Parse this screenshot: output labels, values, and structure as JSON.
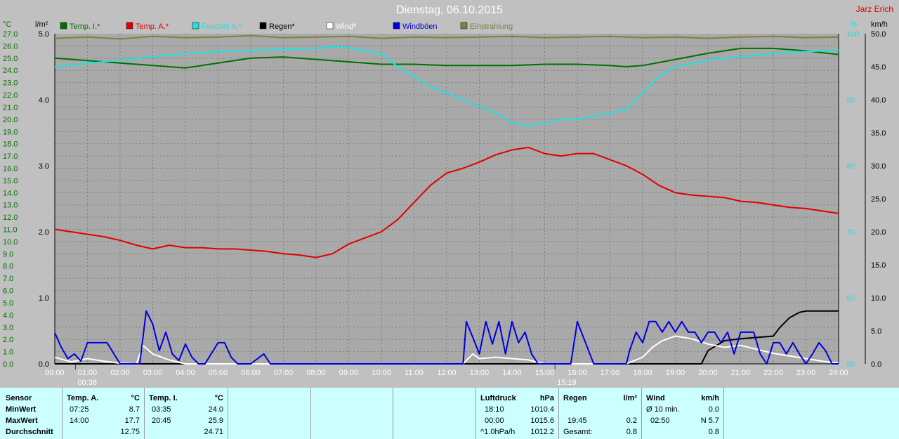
{
  "title": "Dienstag, 06.10.2015",
  "author": "Jarz Erich",
  "colors": {
    "plot_bg": "#a9a9a9",
    "grid": "#808080",
    "temp_i": "#007000",
    "temp_a": "#e00000",
    "feuchte": "#20e0e0",
    "regen": "#000000",
    "wind": "#ffffff",
    "windboeen": "#0000e0",
    "einstrahlung": "#808040",
    "temp_axis": "#007000"
  },
  "axes": {
    "temp_unit": "°C",
    "rain_unit": "l/m²",
    "hum_unit": "%",
    "wind_unit": "km/h",
    "temp_ticks": [
      "0.0",
      "1.0",
      "2.0",
      "3.0",
      "4.0",
      "5.0",
      "6.0",
      "7.0",
      "8.0",
      "9.0",
      "10.0",
      "11.0",
      "12.0",
      "13.0",
      "14.0",
      "15.0",
      "16.0",
      "17.0",
      "18.0",
      "19.0",
      "20.0",
      "21.0",
      "22.0",
      "23.0",
      "24.0",
      "25.0",
      "26.0",
      "27.0"
    ],
    "rain_ticks": [
      "0.0",
      "1.0",
      "2.0",
      "3.0",
      "4.0",
      "5.0"
    ],
    "hum_ticks": [
      "50",
      "60",
      "70",
      "80",
      "90",
      "100"
    ],
    "wind_ticks": [
      "0.0",
      "5.0",
      "10.0",
      "15.0",
      "20.0",
      "25.0",
      "30.0",
      "35.0",
      "40.0",
      "45.0",
      "50.0"
    ],
    "time_ticks": [
      "00:00",
      "01:00",
      "02:00",
      "03:00",
      "04:00",
      "05:00",
      "06:00",
      "07:00",
      "08:00",
      "09:00",
      "10:00",
      "11:00",
      "12:00",
      "13:00",
      "14:00",
      "15:00",
      "16:00",
      "17:00",
      "18:00",
      "19:00",
      "20:00",
      "21:00",
      "22:00",
      "23:00",
      "24:00"
    ],
    "sunrise": "00:38",
    "sunset": "15:19"
  },
  "legend": [
    {
      "label": "Temp. I.*",
      "color": "#007000"
    },
    {
      "label": "Temp. A.*",
      "color": "#e00000"
    },
    {
      "label": "Feuchte A.*",
      "color": "#20e0e0"
    },
    {
      "label": "Regen*",
      "color": "#000000"
    },
    {
      "label": "Wind*",
      "color": "#ffffff"
    },
    {
      "label": "Windböen",
      "color": "#0000e0"
    },
    {
      "label": "Einstrahlung",
      "color": "#808040"
    }
  ],
  "chart_data": {
    "type": "line",
    "title": "Dienstag, 06.10.2015",
    "x_unit": "hours",
    "xlim": [
      0,
      24
    ],
    "series": [
      {
        "name": "Temp. I.*",
        "axis": "temp",
        "ylim": [
          0,
          27
        ],
        "x": [
          0,
          1,
          2,
          3,
          4,
          5,
          6,
          7,
          8,
          9,
          10,
          11,
          12,
          13,
          14,
          15,
          16,
          17,
          17.5,
          18,
          19,
          20,
          21,
          22,
          23,
          24
        ],
        "y": [
          25.0,
          24.8,
          24.6,
          24.4,
          24.2,
          24.6,
          25.0,
          25.1,
          24.9,
          24.7,
          24.5,
          24.5,
          24.4,
          24.4,
          24.4,
          24.5,
          24.5,
          24.4,
          24.3,
          24.4,
          24.9,
          25.4,
          25.8,
          25.8,
          25.6,
          25.3
        ]
      },
      {
        "name": "Temp. A.*",
        "axis": "temp",
        "ylim": [
          0,
          27
        ],
        "x": [
          0,
          0.5,
          1,
          1.5,
          2,
          2.5,
          3,
          3.5,
          4,
          4.5,
          5,
          5.5,
          6,
          6.5,
          7,
          7.5,
          8,
          8.5,
          9,
          9.5,
          10,
          10.5,
          11,
          11.5,
          12,
          12.5,
          13,
          13.5,
          14,
          14.5,
          15,
          15.5,
          16,
          16.5,
          17,
          17.5,
          18,
          18.5,
          19,
          19.5,
          20,
          20.5,
          21,
          21.5,
          22,
          22.5,
          23,
          23.5,
          24
        ],
        "y": [
          11.0,
          10.8,
          10.6,
          10.4,
          10.1,
          9.7,
          9.4,
          9.7,
          9.5,
          9.5,
          9.4,
          9.4,
          9.3,
          9.2,
          9.0,
          8.9,
          8.7,
          9.0,
          9.8,
          10.3,
          10.8,
          11.8,
          13.2,
          14.6,
          15.6,
          16.0,
          16.5,
          17.1,
          17.5,
          17.7,
          17.2,
          17.0,
          17.2,
          17.2,
          16.7,
          16.2,
          15.5,
          14.6,
          14.0,
          13.8,
          13.7,
          13.6,
          13.3,
          13.2,
          13.0,
          12.8,
          12.7,
          12.5,
          12.3
        ]
      },
      {
        "name": "Feuchte A.*",
        "axis": "hum",
        "ylim": [
          50,
          100
        ],
        "x": [
          0,
          1,
          2,
          3,
          4,
          5,
          6,
          7,
          8,
          8.5,
          9,
          10,
          10.5,
          11,
          11.5,
          12,
          12.5,
          13,
          13.5,
          14,
          14.5,
          15,
          15.5,
          16,
          16.5,
          17,
          17.5,
          18,
          18.5,
          19,
          20,
          21,
          22,
          22.5,
          23,
          23.5,
          24
        ],
        "y": [
          95.0,
          95.5,
          96.0,
          96.5,
          97.0,
          97.3,
          97.5,
          97.6,
          97.8,
          98.0,
          97.9,
          97.0,
          95.0,
          93.5,
          92.0,
          91.0,
          90.0,
          89.0,
          88.0,
          86.5,
          86.0,
          86.5,
          87.0,
          87.0,
          87.5,
          88.0,
          88.5,
          91.0,
          93.5,
          95.0,
          96.0,
          96.5,
          97.0,
          97.2,
          97.3,
          97.4,
          97.5
        ]
      },
      {
        "name": "Regen*",
        "axis": "rain",
        "ylim": [
          0,
          5
        ],
        "x": [
          0,
          19.8,
          20,
          20.5,
          21,
          21.5,
          22,
          22.2,
          22.5,
          22.8,
          23,
          24
        ],
        "y": [
          0,
          0.0,
          0.2,
          0.35,
          0.38,
          0.4,
          0.42,
          0.55,
          0.7,
          0.78,
          0.8,
          0.8
        ]
      },
      {
        "name": "Wind*",
        "axis": "wind",
        "ylim": [
          0,
          50
        ],
        "x": [
          0,
          0.5,
          1,
          1.5,
          2,
          2.5,
          2.7,
          3.0,
          3.5,
          4,
          5,
          6,
          7,
          8,
          9,
          10,
          11,
          12,
          12.5,
          12.8,
          13,
          13.5,
          14,
          14.5,
          15,
          16,
          17,
          17.5,
          18,
          18.3,
          18.6,
          19,
          19.5,
          20,
          20.5,
          21,
          21.5,
          22,
          22.5,
          23,
          23.5,
          24
        ],
        "y": [
          1.0,
          0.3,
          0.8,
          0.4,
          0.1,
          0.0,
          2.8,
          1.5,
          0.6,
          0,
          0,
          0,
          0,
          0,
          0,
          0,
          0,
          0,
          0,
          1.5,
          0.8,
          1.0,
          0.8,
          0.6,
          0,
          0,
          0,
          0,
          1.0,
          2.5,
          3.5,
          4.2,
          3.8,
          3.0,
          2.5,
          2.8,
          2.2,
          1.6,
          1.2,
          0.8,
          0.4,
          0.1
        ]
      },
      {
        "name": "Windböen",
        "axis": "wind",
        "ylim": [
          0,
          50
        ],
        "x": [
          0,
          0.2,
          0.4,
          0.6,
          0.8,
          1,
          1.4,
          1.6,
          2,
          2.6,
          2.8,
          3,
          3.2,
          3.4,
          3.6,
          3.8,
          4,
          4.2,
          4.4,
          4.6,
          5,
          5.2,
          5.4,
          5.6,
          6,
          6.4,
          6.6,
          7,
          8,
          9,
          10,
          11,
          12,
          12.5,
          12.6,
          12.8,
          13,
          13.2,
          13.4,
          13.6,
          13.8,
          14,
          14.2,
          14.4,
          14.6,
          14.8,
          15,
          15.8,
          16,
          16.5,
          17,
          17.5,
          17.6,
          17.8,
          18,
          18.2,
          18.4,
          18.6,
          18.8,
          19,
          19.2,
          19.4,
          19.6,
          19.8,
          20,
          20.2,
          20.4,
          20.6,
          20.8,
          21,
          21.2,
          21.4,
          21.6,
          21.8,
          22,
          22.2,
          22.4,
          22.6,
          22.8,
          23,
          23.2,
          23.4,
          23.6,
          23.8,
          24
        ],
        "y": [
          4.7,
          2.5,
          0.8,
          1.5,
          0.4,
          3.2,
          3.2,
          3.2,
          0,
          0,
          8.0,
          6.0,
          2.0,
          4.8,
          1.5,
          0.5,
          3.0,
          1.0,
          0,
          0,
          3.2,
          3.2,
          1.0,
          0,
          0,
          1.5,
          0,
          0,
          0,
          0,
          0,
          0,
          0,
          0,
          6.4,
          4.0,
          1.5,
          6.4,
          3.0,
          6.4,
          1.5,
          6.4,
          3.2,
          4.8,
          1.5,
          0,
          0,
          0,
          6.4,
          0,
          0,
          0,
          2.0,
          4.8,
          3.2,
          6.4,
          6.4,
          4.8,
          6.4,
          4.8,
          6.4,
          4.8,
          4.8,
          3.2,
          4.8,
          4.8,
          3.2,
          4.8,
          1.5,
          4.8,
          4.8,
          4.8,
          1.5,
          0,
          3.2,
          3.2,
          1.5,
          3.2,
          1.5,
          0,
          1.5,
          3.2,
          2.0,
          0,
          0
        ]
      },
      {
        "name": "Einstrahlung",
        "axis": "hum",
        "ylim": [
          50,
          100
        ],
        "x": [
          0,
          1,
          2,
          3,
          4,
          5,
          6,
          7,
          8,
          9,
          10,
          11,
          12,
          13,
          14,
          15,
          16,
          17,
          18,
          19,
          20,
          21,
          22,
          23,
          24
        ],
        "y": [
          99.3,
          99.5,
          99.2,
          99.6,
          99.4,
          99.5,
          99.7,
          99.4,
          99.5,
          99.6,
          99.3,
          99.5,
          99.4,
          99.5,
          99.6,
          99.4,
          99.5,
          99.6,
          99.4,
          99.5,
          99.3,
          99.5,
          99.6,
          99.4,
          99.5
        ]
      }
    ]
  },
  "stats": {
    "sensor": {
      "header": "Sensor",
      "rows": [
        "MinWert",
        "MaxWert",
        "Durchschnitt"
      ]
    },
    "temp_a": {
      "header": "Temp. A.",
      "unit": "°C",
      "min_time": "07:25",
      "min_val": "8.7",
      "max_time": "14:00",
      "max_val": "17.7",
      "avg": "12.75"
    },
    "temp_i": {
      "header": "Temp. I.",
      "unit": "°C",
      "min_time": "03:35",
      "min_val": "24.0",
      "max_time": "20:45",
      "max_val": "25.9",
      "avg": "24.71"
    },
    "pressure": {
      "header": "Luftdruck",
      "unit": "hPa",
      "min_time": "18:10",
      "min_val": "1010.4",
      "max_time": "00:00",
      "max_val": "1015.6",
      "avg_label": "^1.0hPa/h",
      "avg": "1012.2"
    },
    "rain": {
      "header": "Regen",
      "unit": "l/m²",
      "max_time": "19:45",
      "max_val": "0.2",
      "total_label": "Gesamt:",
      "total": "0.8"
    },
    "wind": {
      "header": "Wind",
      "unit": "km/h",
      "min_label": "Ø 10 min.",
      "min_val": "0.0",
      "max_time": "02:50",
      "max_val": "N 5.7",
      "avg": "0.8"
    }
  }
}
